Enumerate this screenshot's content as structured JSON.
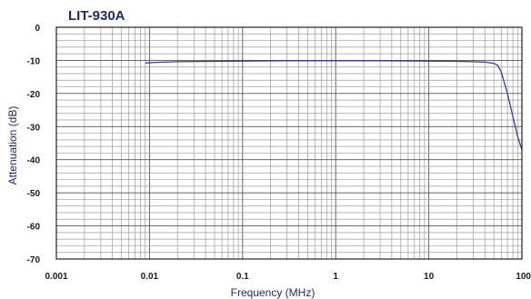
{
  "chart_data": {
    "type": "line",
    "title": "LIT-930A",
    "xlabel": "Frequency (MHz)",
    "ylabel": "Attenuation (dB)",
    "xscale": "log",
    "xlim": [
      0.001,
      100
    ],
    "ylim": [
      -70,
      0
    ],
    "grid": true,
    "x_ticks": [
      "0.001",
      "0.01",
      "0.1",
      "1",
      "10",
      "100"
    ],
    "y_ticks": [
      "0",
      "-10",
      "-20",
      "-30",
      "-40",
      "-50",
      "-60",
      "-70"
    ],
    "series": [
      {
        "color": "#3a3f8f",
        "x": [
          0.009,
          0.012,
          0.02,
          0.05,
          0.1,
          0.3,
          1,
          3,
          10,
          20,
          30,
          40,
          50,
          55,
          60,
          70,
          80,
          90,
          100
        ],
        "y": [
          -10.8,
          -10.6,
          -10.4,
          -10.3,
          -10.2,
          -10.1,
          -10.1,
          -10.1,
          -10.2,
          -10.3,
          -10.4,
          -10.5,
          -10.9,
          -11.5,
          -13.5,
          -20,
          -27,
          -33,
          -37
        ]
      }
    ]
  }
}
